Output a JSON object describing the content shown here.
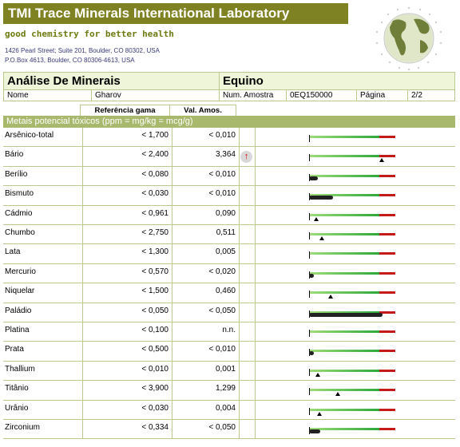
{
  "header": {
    "title": "TMI Trace Minerals International Laboratory",
    "tagline": "good chemistry for better health",
    "address1": "1426 Pearl Street; Suite 201, Boulder, CO 80302, USA",
    "address2": "P.O.Box 4613, Boulder, CO 80306-4613, USA"
  },
  "report": {
    "title": "Análise De Minerais",
    "species": "Equino",
    "name_label": "Nome",
    "name_value": "Gharov",
    "sample_label": "Num. Amostra",
    "sample_value": "0EQ150000",
    "page_label": "Página",
    "page_value": "2/2"
  },
  "columns": {
    "ref": "Referência gama",
    "val": "Val. Amos."
  },
  "section": {
    "title": "Metais potencial tóxicos (ppm = mg/kg = mcg/g)"
  },
  "colors": {
    "header_bg": "#7f8222",
    "section_bg": "#a8b86c",
    "border": "#b9c98f",
    "high": "#c41a1a"
  },
  "rows": [
    {
      "name": "Arsênico-total",
      "ref": "< 1,700",
      "val": "< 0,010",
      "flag": "",
      "marker": null,
      "black": 0
    },
    {
      "name": "Bário",
      "ref": "< 2,400",
      "val": "3,364",
      "flag": "↑",
      "marker": 0.84,
      "black": 0
    },
    {
      "name": "Berílio",
      "ref": "< 0,080",
      "val": "< 0,010",
      "flag": "",
      "marker": null,
      "black": 0.1
    },
    {
      "name": "Bismuto",
      "ref": "< 0,030",
      "val": "< 0,010",
      "flag": "",
      "marker": null,
      "black": 0.28
    },
    {
      "name": "Cádmio",
      "ref": "< 0,961",
      "val": "0,090",
      "flag": "",
      "marker": 0.08,
      "black": 0
    },
    {
      "name": "Chumbo",
      "ref": "< 2,750",
      "val": "0,511",
      "flag": "",
      "marker": 0.15,
      "black": 0
    },
    {
      "name": "Lata",
      "ref": "< 1,300",
      "val": "0,005",
      "flag": "",
      "marker": null,
      "black": 0
    },
    {
      "name": "Mercurio",
      "ref": "< 0,570",
      "val": "< 0,020",
      "flag": "",
      "marker": null,
      "black": 0.05
    },
    {
      "name": "Niquelar",
      "ref": "< 1,500",
      "val": "0,460",
      "flag": "",
      "marker": 0.25,
      "black": 0
    },
    {
      "name": "Paládio",
      "ref": "< 0,050",
      "val": "< 0,050",
      "flag": "",
      "marker": null,
      "black": 0.85
    },
    {
      "name": "Platina",
      "ref": "< 0,100",
      "val": "n.n.",
      "flag": "",
      "marker": null,
      "black": 0
    },
    {
      "name": "Prata",
      "ref": "< 0,500",
      "val": "< 0,010",
      "flag": "",
      "marker": null,
      "black": 0.03
    },
    {
      "name": "Thallium",
      "ref": "< 0,010",
      "val": "0,001",
      "flag": "",
      "marker": 0.1,
      "black": 0
    },
    {
      "name": "Titânio",
      "ref": "< 3,900",
      "val": "1,299",
      "flag": "",
      "marker": 0.33,
      "black": 0
    },
    {
      "name": "Urânio",
      "ref": "< 0,030",
      "val": "0,004",
      "flag": "",
      "marker": 0.12,
      "black": 0
    },
    {
      "name": "Zirconium",
      "ref": "< 0,334",
      "val": "< 0,050",
      "flag": "",
      "marker": null,
      "black": 0.13
    }
  ]
}
